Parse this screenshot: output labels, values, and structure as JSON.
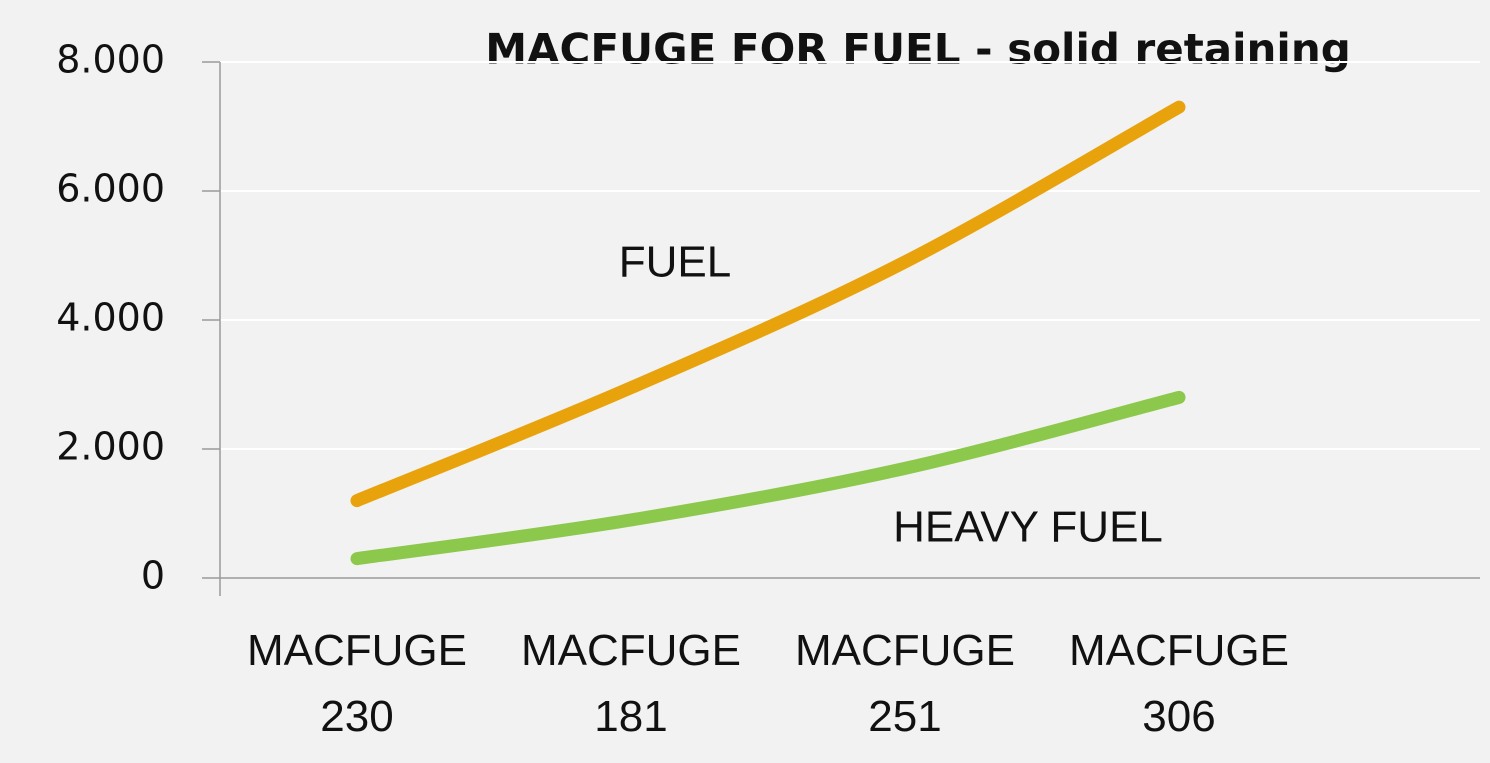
{
  "chart_data": {
    "type": "line",
    "title": "MACFUGE  FOR FUEL  - solid retaining",
    "categories": [
      "MACFUGE 230",
      "MACFUGE 181",
      "MACFUGE 251",
      "MACFUGE 306"
    ],
    "series": [
      {
        "name": "FUEL",
        "color": "#e8a20c",
        "values": [
          1200,
          2950,
          4900,
          7300
        ]
      },
      {
        "name": "HEAVY FUEL",
        "color": "#8cc84b",
        "values": [
          300,
          900,
          1700,
          2800
        ]
      }
    ],
    "ylim": [
      0,
      8000
    ],
    "yticks": [
      0,
      {
        "value": 2000,
        "label": "2.000"
      },
      {
        "value": 4000,
        "label": "4.000"
      },
      {
        "value": 6000,
        "label": "6.000"
      },
      {
        "value": 8000,
        "label": "8.000"
      }
    ],
    "grid": true
  }
}
